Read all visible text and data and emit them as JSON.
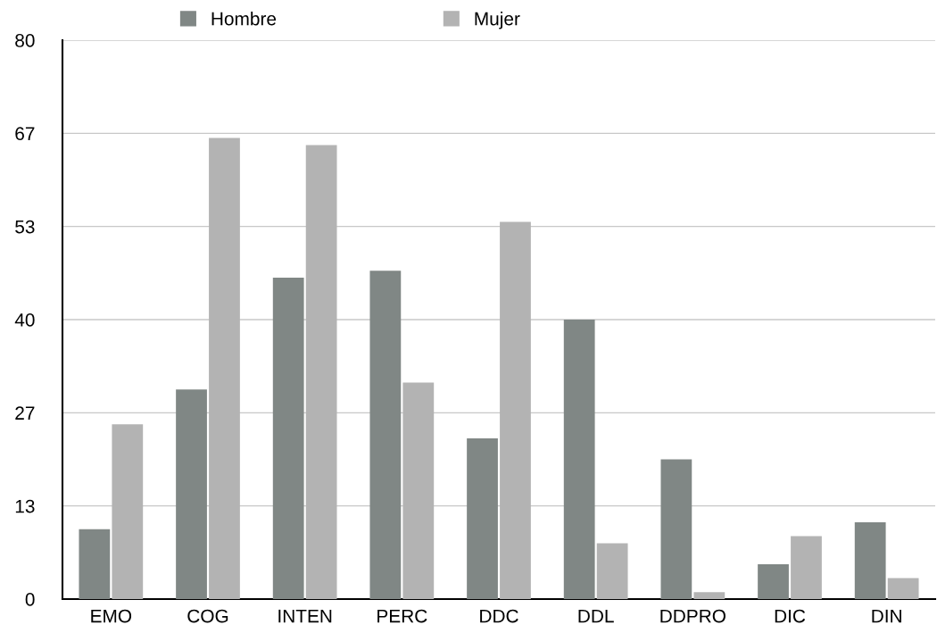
{
  "chart_data": {
    "type": "bar",
    "categories": [
      "EMO",
      "COG",
      "INTEN",
      "PERC",
      "DDC",
      "DDL",
      "DDPRO",
      "DIC",
      "DIN"
    ],
    "series": [
      {
        "name": "Hombre",
        "color": "#808785",
        "values": [
          10,
          30,
          46,
          47,
          23,
          40,
          20,
          5,
          11
        ]
      },
      {
        "name": "Mujer",
        "color": "#b3b3b3",
        "values": [
          25,
          66,
          65,
          31,
          54,
          8,
          1,
          9,
          3
        ]
      }
    ],
    "ylim": [
      0,
      80
    ],
    "yticks": [
      0,
      {
        "value": 13.333,
        "label": "13"
      },
      {
        "value": 26.667,
        "label": "27"
      },
      40,
      {
        "value": 53.333,
        "label": "53"
      },
      {
        "value": 66.667,
        "label": "67"
      },
      80
    ],
    "grid": "y",
    "legend": "top"
  }
}
